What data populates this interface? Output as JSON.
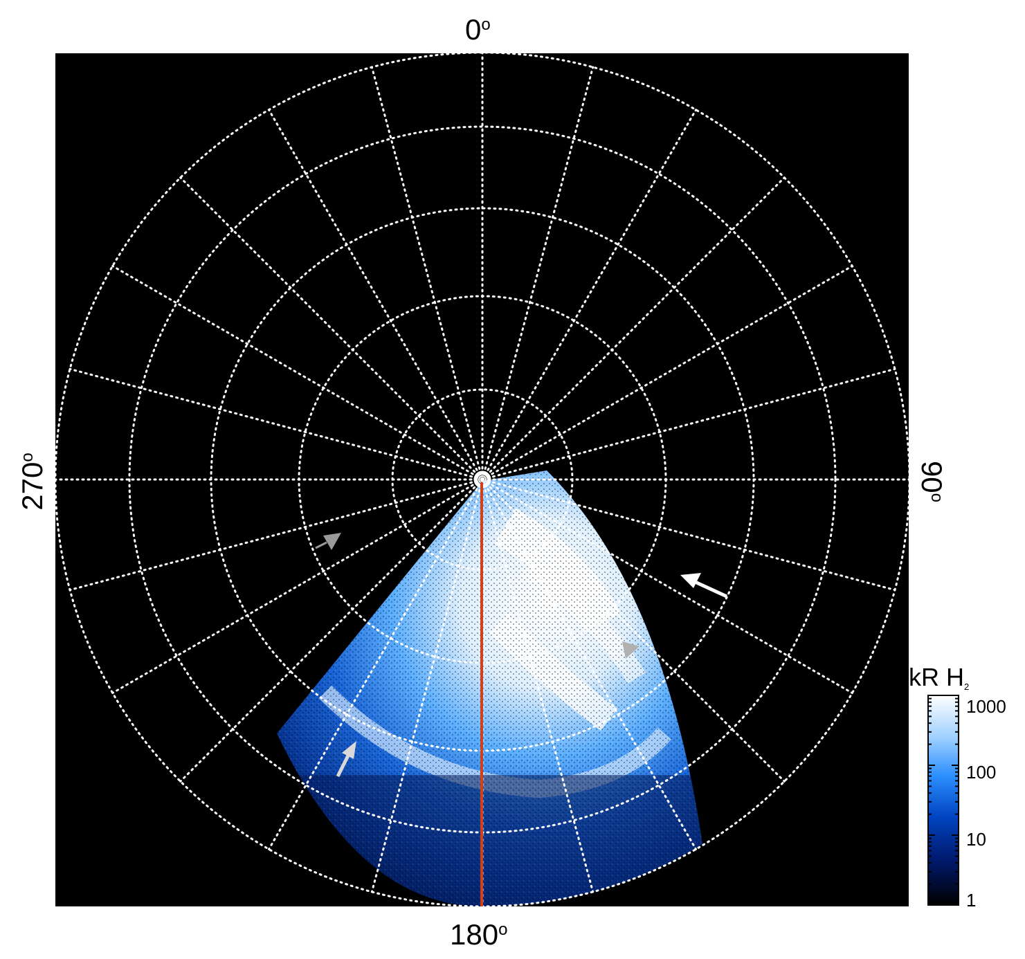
{
  "plot": {
    "direction_labels": {
      "top": "0",
      "right": "90",
      "bottom": "180",
      "left": "270",
      "degree_symbol": "o"
    },
    "background_color": "#000000",
    "grid_color": "#ffffff",
    "meridian_color": "#d0401a",
    "grid": {
      "rings": 6,
      "radial_spokes_deg_step": 15
    },
    "arrows": [
      {
        "color": "#9a9a9a",
        "kind": "filled-triangle"
      },
      {
        "color": "#ffffff",
        "kind": "arrow"
      },
      {
        "color": "#b0b0b0",
        "kind": "filled-triangle"
      },
      {
        "color": "#d9d9d9",
        "kind": "arrow"
      }
    ]
  },
  "colorbar": {
    "title": "kR H",
    "title_sub": "2",
    "ticks": [
      "1000",
      "100",
      "10",
      "1"
    ],
    "colors": [
      "#ffffff",
      "#55aaff",
      "#0066dd",
      "#002a8c",
      "#000000"
    ],
    "scale": "log"
  }
}
